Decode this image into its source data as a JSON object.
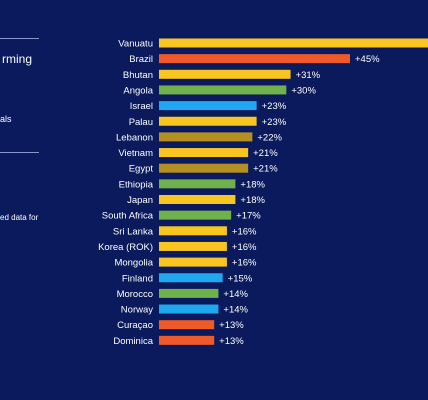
{
  "side_panel": {
    "heading_fragment": "rming",
    "note_fragment": "als",
    "footnote_fragment": "ed data for"
  },
  "chart_data": {
    "type": "bar",
    "orientation": "horizontal",
    "categories": [
      "Vanuatu",
      "Brazil",
      "Bhutan",
      "Angola",
      "Israel",
      "Palau",
      "Lebanon",
      "Vietnam",
      "Egypt",
      "Ethiopia",
      "Japan",
      "South Africa",
      "Sri Lanka",
      "Korea (ROK)",
      "Mongolia",
      "Finland",
      "Morocco",
      "Norway",
      "Curaçao",
      "Dominica"
    ],
    "values": [
      null,
      45,
      31,
      30,
      23,
      23,
      22,
      21,
      21,
      18,
      18,
      17,
      16,
      16,
      16,
      15,
      14,
      14,
      13,
      13
    ],
    "value_labels": [
      "",
      "+45%",
      "+31%",
      "+30%",
      "+23%",
      "+23%",
      "+22%",
      "+21%",
      "+21%",
      "+18%",
      "+18%",
      "+17%",
      "+16%",
      "+16%",
      "+16%",
      "+15%",
      "+14%",
      "+14%",
      "+13%",
      "+13%"
    ],
    "bar_colors": [
      "#f9c51f",
      "#f05a28",
      "#f9c51f",
      "#6fb24b",
      "#1fa8f0",
      "#f9c51f",
      "#b58f22",
      "#f9c51f",
      "#b58f22",
      "#6fb24b",
      "#f9c51f",
      "#6fb24b",
      "#f9c51f",
      "#f9c51f",
      "#f9c51f",
      "#1fa8f0",
      "#6fb24b",
      "#1fa8f0",
      "#f05a28",
      "#f05a28"
    ],
    "title": "",
    "xlabel": "",
    "ylabel": ""
  }
}
